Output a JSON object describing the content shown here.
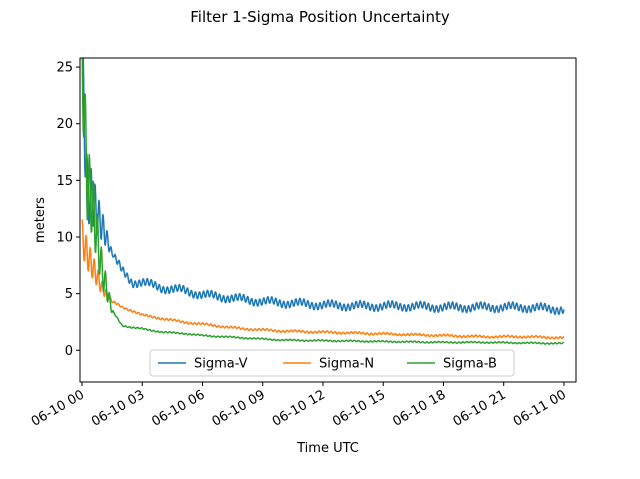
{
  "chart_data": {
    "type": "line",
    "title": "Filter 1-Sigma Position Uncertainty",
    "xlabel": "Time UTC",
    "ylabel": "meters",
    "x_hours": [
      0,
      0.25,
      0.5,
      0.75,
      1,
      1.5,
      2,
      2.5,
      3,
      4,
      5,
      6,
      7,
      8,
      9,
      10,
      12,
      14,
      16,
      18,
      20,
      22,
      24
    ],
    "xlim_hours": [
      -0.1,
      24.6
    ],
    "ylim": [
      -2.8,
      25.8
    ],
    "yticks": [
      0,
      5,
      10,
      15,
      20,
      25
    ],
    "xticks": [
      {
        "hour": 0,
        "label": "06-10 00"
      },
      {
        "hour": 3,
        "label": "06-10 03"
      },
      {
        "hour": 6,
        "label": "06-10 06"
      },
      {
        "hour": 9,
        "label": "06-10 09"
      },
      {
        "hour": 12,
        "label": "06-10 12"
      },
      {
        "hour": 15,
        "label": "06-10 15"
      },
      {
        "hour": 18,
        "label": "06-10 18"
      },
      {
        "hour": 21,
        "label": "06-10 21"
      },
      {
        "hour": 24,
        "label": "06-11 00"
      }
    ],
    "series": [
      {
        "name": "Sigma-V",
        "color": "#1f77b4",
        "oscillation": 0.3,
        "values": [
          26,
          14,
          13.5,
          12,
          11,
          8.5,
          7,
          6,
          6,
          5.5,
          5.3,
          4.9,
          4.7,
          4.5,
          4.3,
          4.2,
          4.0,
          3.9,
          3.9,
          3.8,
          3.8,
          3.8,
          3.6
        ]
      },
      {
        "name": "Sigma-N",
        "color": "#ff7f0e",
        "oscillation": 0.08,
        "values": [
          10,
          8.5,
          7.5,
          6.5,
          5.5,
          4.3,
          3.8,
          3.5,
          3.1,
          2.8,
          2.5,
          2.3,
          2.1,
          1.9,
          1.8,
          1.7,
          1.6,
          1.5,
          1.4,
          1.3,
          1.2,
          1.2,
          1.1
        ]
      },
      {
        "name": "Sigma-B",
        "color": "#2ca02c",
        "oscillation": 0.05,
        "values": [
          26,
          15,
          13,
          10,
          7,
          3.5,
          2.2,
          2.0,
          1.9,
          1.6,
          1.5,
          1.3,
          1.2,
          1.1,
          1.0,
          0.9,
          0.85,
          0.8,
          0.75,
          0.7,
          0.7,
          0.65,
          0.6
        ]
      }
    ],
    "legend": {
      "placement": "lower-center",
      "columns": 3
    },
    "grid": false
  }
}
